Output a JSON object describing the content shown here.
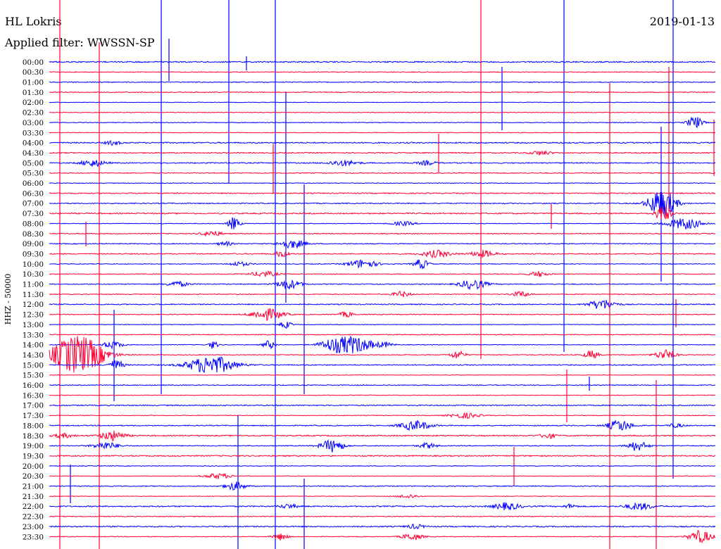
{
  "chart_data": {
    "type": "line",
    "station": "HL Lokris",
    "date": "2019-01-13",
    "filter_label": "Applied filter: WWSSN-SP",
    "ylabel": "HHZ - 50000",
    "xlabel": "",
    "grid": false,
    "trace_colors": [
      "#0000ff",
      "#ff0033"
    ],
    "rows": [
      {
        "time": "00:00"
      },
      {
        "time": "00:30"
      },
      {
        "time": "01:00"
      },
      {
        "time": "01:30"
      },
      {
        "time": "02:00"
      },
      {
        "time": "02:30"
      },
      {
        "time": "03:00"
      },
      {
        "time": "03:30"
      },
      {
        "time": "04:00"
      },
      {
        "time": "04:30"
      },
      {
        "time": "05:00"
      },
      {
        "time": "05:30"
      },
      {
        "time": "06:00"
      },
      {
        "time": "06:30"
      },
      {
        "time": "07:00"
      },
      {
        "time": "07:30"
      },
      {
        "time": "08:00"
      },
      {
        "time": "08:30"
      },
      {
        "time": "09:00"
      },
      {
        "time": "09:30"
      },
      {
        "time": "10:00"
      },
      {
        "time": "10:30"
      },
      {
        "time": "11:00"
      },
      {
        "time": "11:30"
      },
      {
        "time": "12:00"
      },
      {
        "time": "12:30"
      },
      {
        "time": "13:00"
      },
      {
        "time": "13:30"
      },
      {
        "time": "14:00"
      },
      {
        "time": "14:30"
      },
      {
        "time": "15:00"
      },
      {
        "time": "15:30"
      },
      {
        "time": "16:00"
      },
      {
        "time": "16:30"
      },
      {
        "time": "17:00"
      },
      {
        "time": "17:30"
      },
      {
        "time": "18:00"
      },
      {
        "time": "18:30"
      },
      {
        "time": "19:00"
      },
      {
        "time": "19:30"
      },
      {
        "time": "20:00"
      },
      {
        "time": "20:30"
      },
      {
        "time": "21:00"
      },
      {
        "time": "21:30"
      },
      {
        "time": "22:00"
      },
      {
        "time": "22:30"
      },
      {
        "time": "23:00"
      },
      {
        "time": "23:30"
      }
    ]
  }
}
